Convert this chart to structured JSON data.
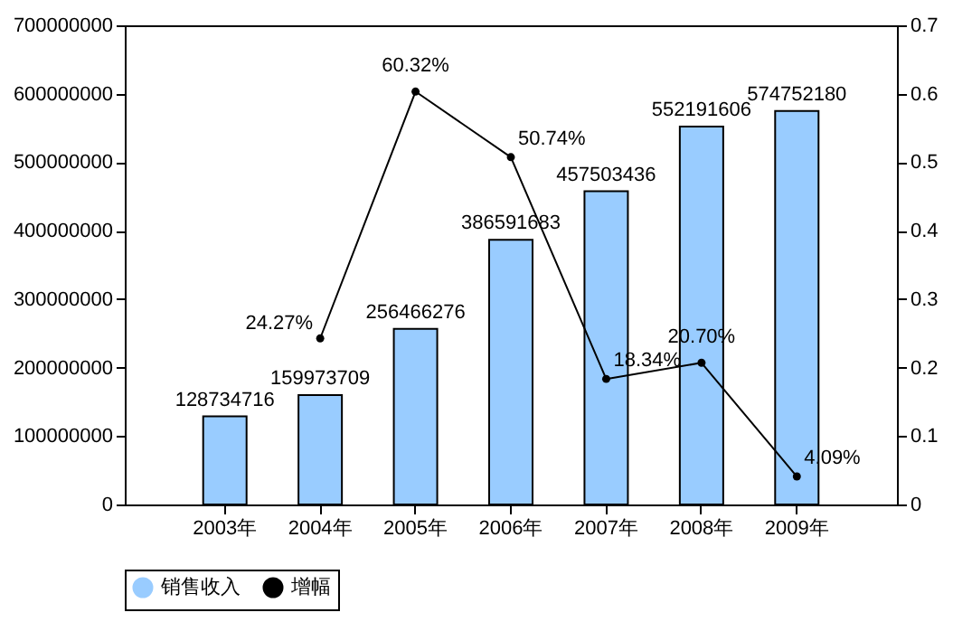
{
  "chart_data": {
    "type": "bar",
    "categories": [
      "2003年",
      "2004年",
      "2005年",
      "2006年",
      "2007年",
      "2008年",
      "2009年"
    ],
    "series": [
      {
        "name": "销售收入",
        "color": "#99ccff",
        "values": [
          128734716,
          159973709,
          256466276,
          386591683,
          457503436,
          552191606,
          574752180
        ],
        "value_labels": [
          "128734716",
          "159973709",
          "256466276",
          "386591683",
          "457503436",
          "552191606",
          "574752180"
        ]
      },
      {
        "name": "增幅",
        "type": "line",
        "axis": "y2",
        "color": "#000000",
        "marker": "circle",
        "values": [
          null,
          0.2427,
          0.6032,
          0.5074,
          0.1834,
          0.207,
          0.0409
        ],
        "value_labels": [
          null,
          "24.27%",
          "60.32%",
          "50.74%",
          "18.34%",
          "20.70%",
          "4.09%"
        ]
      }
    ],
    "ylim": [
      0,
      700000000
    ],
    "yticks": [
      0,
      100000000,
      200000000,
      300000000,
      400000000,
      500000000,
      600000000,
      700000000
    ],
    "y2lim": [
      0,
      0.7
    ],
    "y2ticks": [
      0,
      0.1,
      0.2,
      0.3,
      0.4,
      0.5,
      0.6,
      0.7
    ],
    "legend": "bottom",
    "grid": false
  }
}
